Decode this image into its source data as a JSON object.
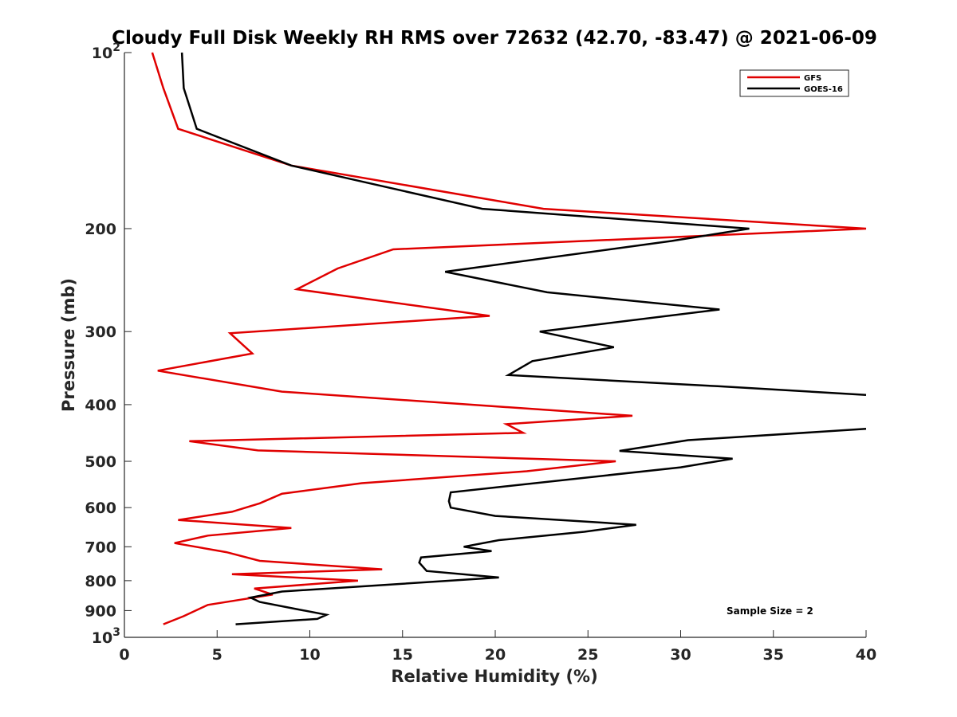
{
  "chart_data": {
    "type": "line",
    "title": "Cloudy Full Disk Weekly RH RMS over 72632 (42.70, -83.47) @ 2021-06-09",
    "xlabel": "Relative Humidity (%)",
    "ylabel": "Pressure (mb)",
    "xlim": [
      0,
      40
    ],
    "ylim": [
      100,
      1000
    ],
    "y_scale": "log",
    "y_reversed": true,
    "grid": false,
    "legend_position": "top-right",
    "x_ticks": [
      "0",
      "5",
      "10",
      "15",
      "20",
      "25",
      "30",
      "35",
      "40"
    ],
    "y_ticks": [
      {
        "value": 100,
        "base": "10",
        "exp": "2"
      },
      {
        "value": 200,
        "label": "200"
      },
      {
        "value": 300,
        "label": "300"
      },
      {
        "value": 400,
        "label": "400"
      },
      {
        "value": 500,
        "label": "500"
      },
      {
        "value": 600,
        "label": "600"
      },
      {
        "value": 700,
        "label": "700"
      },
      {
        "value": 800,
        "label": "800"
      },
      {
        "value": 900,
        "label": "900"
      },
      {
        "value": 1000,
        "base": "10",
        "exp": "3"
      }
    ],
    "series": [
      {
        "name": "GFS",
        "color": "#e00000",
        "points": [
          [
            1.5,
            100
          ],
          [
            2.1,
            115
          ],
          [
            2.9,
            135
          ],
          [
            9.0,
            156
          ],
          [
            22.6,
            185
          ],
          [
            40.0,
            200
          ],
          [
            14.5,
            217
          ],
          [
            11.5,
            234
          ],
          [
            9.3,
            254
          ],
          [
            19.7,
            282
          ],
          [
            5.7,
            302
          ],
          [
            6.9,
            327
          ],
          [
            1.8,
            350
          ],
          [
            8.5,
            380
          ],
          [
            27.4,
            418
          ],
          [
            20.6,
            432
          ],
          [
            21.5,
            447
          ],
          [
            3.5,
            462
          ],
          [
            7.2,
            479
          ],
          [
            26.5,
            500
          ],
          [
            21.7,
            520
          ],
          [
            12.8,
            545
          ],
          [
            8.5,
            568
          ],
          [
            7.3,
            590
          ],
          [
            5.8,
            610
          ],
          [
            2.9,
            630
          ],
          [
            9.0,
            650
          ],
          [
            4.5,
            670
          ],
          [
            2.7,
            690
          ],
          [
            5.5,
            715
          ],
          [
            7.3,
            740
          ],
          [
            13.9,
            765
          ],
          [
            5.8,
            780
          ],
          [
            12.6,
            800
          ],
          [
            7.0,
            825
          ],
          [
            8.0,
            845
          ],
          [
            4.5,
            880
          ],
          [
            3.2,
            920
          ],
          [
            2.1,
            950
          ]
        ]
      },
      {
        "name": "GOES-16",
        "color": "#000000",
        "points": [
          [
            3.1,
            100
          ],
          [
            3.2,
            115
          ],
          [
            3.9,
            135
          ],
          [
            9.0,
            156
          ],
          [
            19.3,
            185
          ],
          [
            33.7,
            200
          ],
          [
            29.5,
            210
          ],
          [
            17.3,
            237
          ],
          [
            22.8,
            257
          ],
          [
            32.1,
            275
          ],
          [
            22.4,
            300
          ],
          [
            26.4,
            319
          ],
          [
            22.0,
            337
          ],
          [
            20.7,
            356
          ],
          [
            32.0,
            372
          ],
          [
            40.0,
            385
          ],
          null,
          [
            40.0,
            440
          ],
          [
            30.4,
            460
          ],
          [
            26.7,
            480
          ],
          [
            32.8,
            495
          ],
          [
            30.0,
            512
          ],
          [
            17.6,
            565
          ],
          [
            17.5,
            585
          ],
          [
            17.6,
            600
          ],
          [
            20.0,
            620
          ],
          [
            27.6,
            642
          ],
          [
            24.8,
            660
          ],
          [
            20.2,
            682
          ],
          [
            18.3,
            700
          ],
          [
            19.8,
            712
          ],
          [
            16.0,
            730
          ],
          [
            15.9,
            745
          ],
          [
            16.3,
            770
          ],
          [
            20.2,
            790
          ],
          [
            8.5,
            835
          ],
          [
            6.8,
            855
          ],
          [
            7.3,
            870
          ],
          [
            9.3,
            895
          ],
          [
            10.9,
            915
          ],
          [
            10.4,
            930
          ],
          [
            6.0,
            950
          ]
        ]
      }
    ],
    "annotation": "Sample Size = 2"
  }
}
